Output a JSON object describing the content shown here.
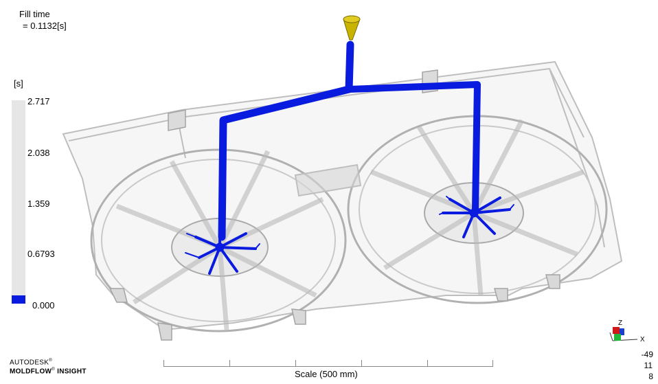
{
  "result": {
    "title": "Fill time",
    "value": "= 0.1132[s]"
  },
  "legend": {
    "unit": "[s]",
    "ticks": [
      "2.717",
      "2.038",
      "1.359",
      "0.6793",
      "0.000"
    ],
    "colors": {
      "bar": "#e6e6e6",
      "min": "#0a1be0"
    }
  },
  "model": {
    "colors": {
      "part": "#c8c8c8",
      "runner": "#0a1be0",
      "sprue": "#c8b400"
    }
  },
  "brand": {
    "line1": "AUTODESK",
    "registered": "®",
    "line2": "MOLDFLOW",
    "line2_suffix": "INSIGHT"
  },
  "scale": {
    "label": "Scale (500 mm)"
  },
  "triad": {
    "axes": [
      "Z",
      "X"
    ],
    "rotation": [
      "-49",
      "11",
      "8"
    ]
  }
}
